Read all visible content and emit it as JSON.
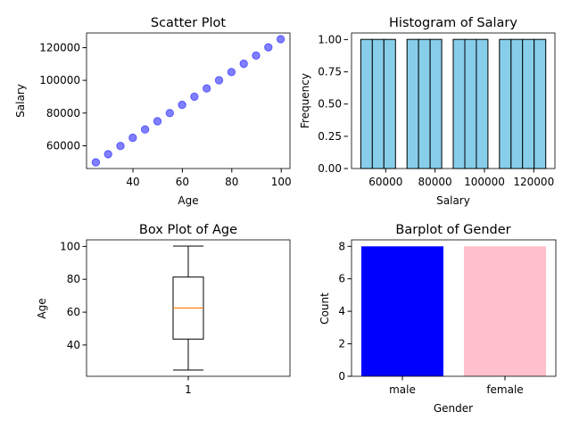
{
  "chart_data": [
    {
      "type": "scatter",
      "title": "Scatter Plot",
      "xlabel": "Age",
      "ylabel": "Salary",
      "x": [
        25,
        30,
        35,
        40,
        45,
        50,
        55,
        60,
        65,
        70,
        75,
        80,
        85,
        90,
        95,
        100
      ],
      "y": [
        50000,
        55000,
        60000,
        65000,
        70000,
        75000,
        80000,
        85000,
        90000,
        95000,
        100000,
        105000,
        110000,
        115000,
        120000,
        125000
      ],
      "xlim": [
        21.25,
        103.75
      ],
      "ylim": [
        46250,
        128750
      ],
      "xticks": [
        "40",
        "60",
        "80",
        "100"
      ],
      "yticks": [
        "60000",
        "80000",
        "100000",
        "120000"
      ],
      "color": "#0000ff",
      "alpha": 0.5,
      "grid": false
    },
    {
      "type": "bar",
      "subtype": "histogram",
      "title": "Histogram of Salary",
      "xlabel": "Salary",
      "ylabel": "Frequency",
      "bin_edges": [
        50000,
        54687.5,
        59375,
        64062.5,
        68750,
        73437.5,
        78125,
        82812.5,
        87500,
        92187.5,
        96875,
        101562.5,
        106250,
        110937.5,
        115625,
        120312.5,
        125000
      ],
      "values": [
        1,
        1,
        1,
        0,
        1,
        1,
        1,
        0,
        1,
        1,
        1,
        0,
        1,
        1,
        1,
        1
      ],
      "xlim": [
        46250,
        128750
      ],
      "ylim": [
        0,
        1.05
      ],
      "xticks": [
        "60000",
        "80000",
        "100000",
        "120000"
      ],
      "yticks": [
        "0.00",
        "0.25",
        "0.50",
        "0.75",
        "1.00"
      ],
      "color": "#87ceeb",
      "edgecolor": "#000000",
      "grid": false
    },
    {
      "type": "box",
      "title": "Box Plot of Age",
      "ylabel": "Age",
      "categories": [
        "1"
      ],
      "box": {
        "whisker_low": 25,
        "q1": 43.75,
        "median": 62.5,
        "q3": 81.25,
        "whisker_high": 100
      },
      "ylim": [
        21.25,
        103.75
      ],
      "yticks": [
        "40",
        "60",
        "80",
        "100"
      ],
      "median_color": "#ff7f0e",
      "grid": false
    },
    {
      "type": "bar",
      "title": "Barplot of Gender",
      "xlabel": "Gender",
      "ylabel": "Count",
      "categories": [
        "male",
        "female"
      ],
      "values": [
        8,
        8
      ],
      "colors": [
        "#0000ff",
        "#ffc0cb"
      ],
      "ylim": [
        0,
        8.4
      ],
      "yticks": [
        "0",
        "2",
        "4",
        "6",
        "8"
      ],
      "grid": false
    }
  ]
}
